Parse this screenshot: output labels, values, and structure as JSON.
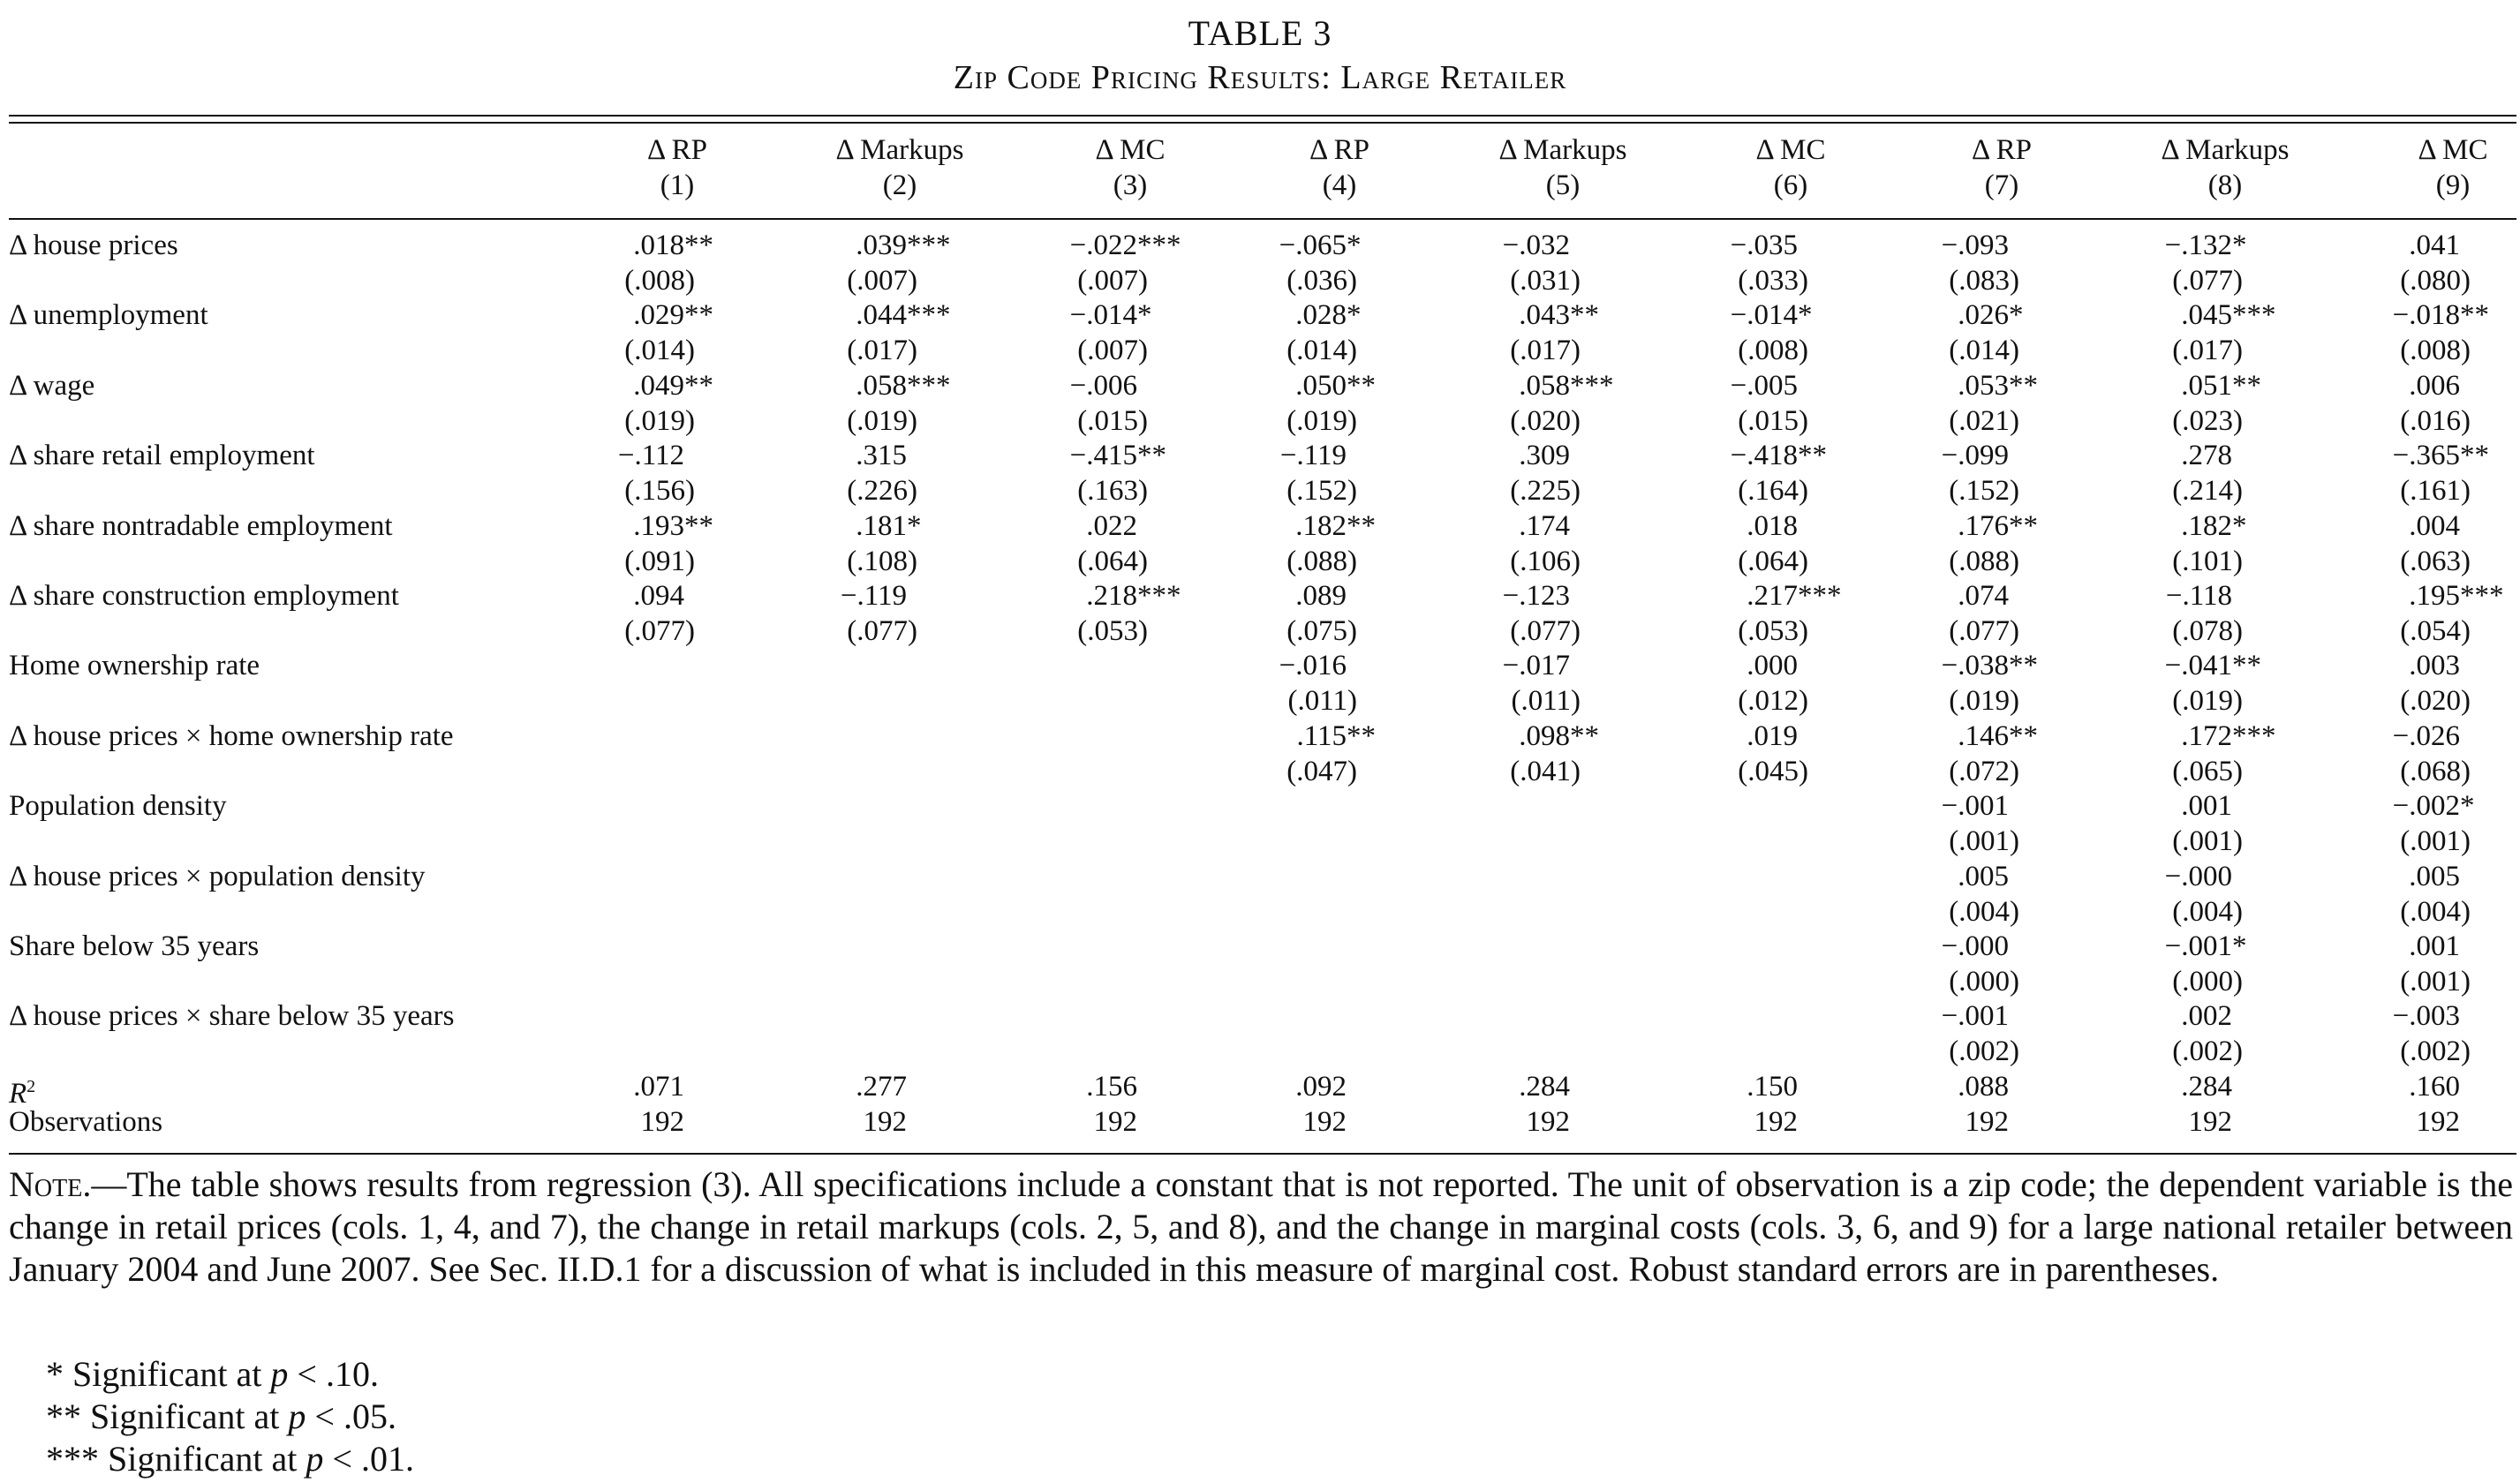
{
  "table": {
    "label": "TABLE 3",
    "title": "Zip Code Pricing Results: Large Retailer",
    "columns": [
      {
        "name": "Δ RP",
        "num": "(1)"
      },
      {
        "name": "Δ Markups",
        "num": "(2)"
      },
      {
        "name": "Δ MC",
        "num": "(3)"
      },
      {
        "name": "Δ RP",
        "num": "(4)"
      },
      {
        "name": "Δ Markups",
        "num": "(5)"
      },
      {
        "name": "Δ MC",
        "num": "(6)"
      },
      {
        "name": "Δ RP",
        "num": "(7)"
      },
      {
        "name": "Δ Markups",
        "num": "(8)"
      },
      {
        "name": "Δ MC",
        "num": "(9)"
      }
    ],
    "rows": [
      {
        "label": "Δ house prices",
        "coef": [
          ".018**",
          ".039***",
          "−.022***",
          "−.065*",
          "−.032",
          "−.035",
          "−.093",
          "−.132*",
          ".041"
        ],
        "se": [
          "(.008)",
          "(.007)",
          "(.007)",
          "(.036)",
          "(.031)",
          "(.033)",
          "(.083)",
          "(.077)",
          "(.080)"
        ]
      },
      {
        "label": "Δ unemployment",
        "coef": [
          ".029**",
          ".044***",
          "−.014*",
          ".028*",
          ".043**",
          "−.014*",
          ".026*",
          ".045***",
          "−.018**"
        ],
        "se": [
          "(.014)",
          "(.017)",
          "(.007)",
          "(.014)",
          "(.017)",
          "(.008)",
          "(.014)",
          "(.017)",
          "(.008)"
        ]
      },
      {
        "label": "Δ wage",
        "coef": [
          ".049**",
          ".058***",
          "−.006",
          ".050**",
          ".058***",
          "−.005",
          ".053**",
          ".051**",
          ".006"
        ],
        "se": [
          "(.019)",
          "(.019)",
          "(.015)",
          "(.019)",
          "(.020)",
          "(.015)",
          "(.021)",
          "(.023)",
          "(.016)"
        ]
      },
      {
        "label": "Δ share retail employment",
        "coef": [
          "−.112",
          ".315",
          "−.415**",
          "−.119",
          ".309",
          "−.418**",
          "−.099",
          ".278",
          "−.365**"
        ],
        "se": [
          "(.156)",
          "(.226)",
          "(.163)",
          "(.152)",
          "(.225)",
          "(.164)",
          "(.152)",
          "(.214)",
          "(.161)"
        ]
      },
      {
        "label": "Δ share nontradable employment",
        "coef": [
          ".193**",
          ".181*",
          ".022",
          ".182**",
          ".174",
          ".018",
          ".176**",
          ".182*",
          ".004"
        ],
        "se": [
          "(.091)",
          "(.108)",
          "(.064)",
          "(.088)",
          "(.106)",
          "(.064)",
          "(.088)",
          "(.101)",
          "(.063)"
        ]
      },
      {
        "label": "Δ share construction employment",
        "coef": [
          ".094",
          "−.119",
          ".218***",
          ".089",
          "−.123",
          ".217***",
          ".074",
          "−.118",
          ".195***"
        ],
        "se": [
          "(.077)",
          "(.077)",
          "(.053)",
          "(.075)",
          "(.077)",
          "(.053)",
          "(.077)",
          "(.078)",
          "(.054)"
        ]
      },
      {
        "label": "Home ownership rate",
        "coef": [
          "",
          "",
          "",
          "−.016",
          "−.017",
          ".000",
          "−.038**",
          "−.041**",
          ".003"
        ],
        "se": [
          "",
          "",
          "",
          "(.011)",
          "(.011)",
          "(.012)",
          "(.019)",
          "(.019)",
          "(.020)"
        ]
      },
      {
        "label": "Δ house prices × home ownership rate",
        "coef": [
          "",
          "",
          "",
          ".115**",
          ".098**",
          ".019",
          ".146**",
          ".172***",
          "−.026"
        ],
        "se": [
          "",
          "",
          "",
          "(.047)",
          "(.041)",
          "(.045)",
          "(.072)",
          "(.065)",
          "(.068)"
        ]
      },
      {
        "label": "Population density",
        "coef": [
          "",
          "",
          "",
          "",
          "",
          "",
          "−.001",
          ".001",
          "−.002*"
        ],
        "se": [
          "",
          "",
          "",
          "",
          "",
          "",
          "(.001)",
          "(.001)",
          "(.001)"
        ]
      },
      {
        "label": "Δ house prices × population density",
        "coef": [
          "",
          "",
          "",
          "",
          "",
          "",
          ".005",
          "−.000",
          ".005"
        ],
        "se": [
          "",
          "",
          "",
          "",
          "",
          "",
          "(.004)",
          "(.004)",
          "(.004)"
        ]
      },
      {
        "label": "Share below 35 years",
        "coef": [
          "",
          "",
          "",
          "",
          "",
          "",
          "−.000",
          "−.001*",
          ".001"
        ],
        "se": [
          "",
          "",
          "",
          "",
          "",
          "",
          "(.000)",
          "(.000)",
          "(.001)"
        ]
      },
      {
        "label": "Δ house prices × share below 35 years",
        "coef": [
          "",
          "",
          "",
          "",
          "",
          "",
          "−.001",
          ".002",
          "−.003"
        ],
        "se": [
          "",
          "",
          "",
          "",
          "",
          "",
          "(.002)",
          "(.002)",
          "(.002)"
        ]
      }
    ],
    "stats": [
      {
        "label": "R",
        "sup": "2",
        "values": [
          ".071",
          ".277",
          ".156",
          ".092",
          ".284",
          ".150",
          ".088",
          ".284",
          ".160"
        ]
      },
      {
        "label": "Observations",
        "sup": "",
        "values": [
          "192",
          "192",
          "192",
          "192",
          "192",
          "192",
          "192",
          "192",
          "192"
        ]
      }
    ]
  },
  "note": {
    "lead": "Note.",
    "text": "—The table shows results from regression (3). All specifications include a constant that is not reported. The unit of observation is a zip code; the dependent variable is the change in retail prices (cols. 1, 4, and 7), the change in retail markups (cols. 2, 5, and 8), and the change in marginal costs (cols. 3, 6, and 9) for a large national retailer between January 2004 and June 2007. See Sec. II.D.1 for a discussion of what is included in this measure of marginal cost. Robust standard errors are in parentheses.",
    "footnotes": [
      {
        "stars": "*",
        "text": "Significant at ",
        "p": "p",
        "cut": " < .10."
      },
      {
        "stars": "**",
        "text": "Significant at ",
        "p": "p",
        "cut": " < .05."
      },
      {
        "stars": "***",
        "text": "Significant at ",
        "p": "p",
        "cut": " < .01."
      }
    ]
  }
}
